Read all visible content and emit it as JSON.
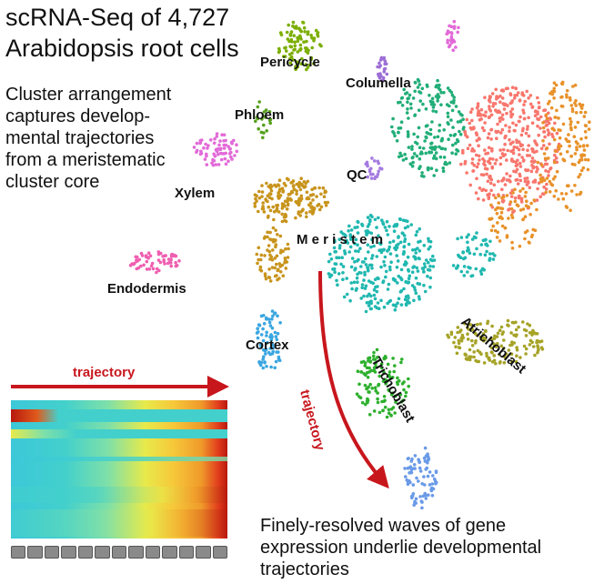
{
  "title_line1": "scRNA-Seq of 4,727",
  "title_line2": "Arabidopsis root cells",
  "description": [
    "Cluster arrangement",
    "captures develop-",
    "mental trajectories",
    "from a meristematic",
    "cluster core"
  ],
  "caption": [
    "Finely-resolved waves of gene",
    "expression underlie developmental",
    "trajectories"
  ],
  "arrow_label_horizontal": "trajectory",
  "arrow_label_curved": "trajectory",
  "colors": {
    "arrow": "#c8161d",
    "pericycle": "#7cae00",
    "columella": "#9c6fd6",
    "phloem": "#56a01c",
    "xylem": "#e26ad8",
    "endodermis": "#ef5fb0",
    "qc": "#a57be0",
    "meristem": "#20b8b0",
    "meristem_green": "#21ae78",
    "cortex": "#3aa6e0",
    "trichoblast": "#2db02d",
    "atrichoblast": "#a6a327",
    "salmon": "#f8766d",
    "orange": "#e8922a",
    "gold": "#c8941c",
    "blue": "#6a9ae8"
  },
  "clusters": [
    {
      "label": "Pericycle",
      "key": "pericycle"
    },
    {
      "label": "Columella",
      "key": "columella"
    },
    {
      "label": "Phloem",
      "key": "phloem"
    },
    {
      "label": "Xylem",
      "key": "xylem"
    },
    {
      "label": "QC",
      "key": "qc"
    },
    {
      "label": "M e r i s t e m",
      "key": "meristem"
    },
    {
      "label": "Endodermis",
      "key": "endodermis"
    },
    {
      "label": "Cortex",
      "key": "cortex"
    },
    {
      "label": "Trichoblast",
      "key": "trichoblast"
    },
    {
      "label": "Atrichoblast",
      "key": "atrichoblast"
    }
  ]
}
